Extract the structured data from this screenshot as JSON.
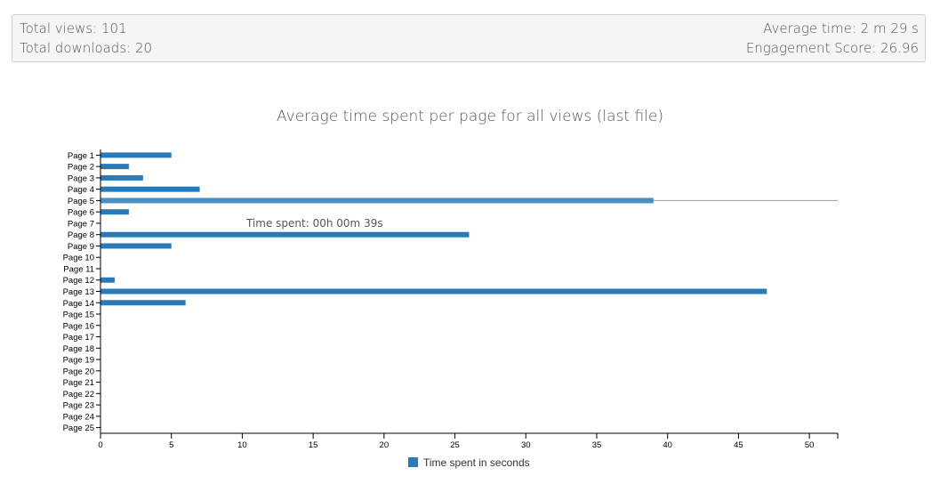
{
  "stats": {
    "total_views": "Total views: 101",
    "total_downloads": "Total downloads: 20",
    "average_time": "Average time: 2 m 29 s",
    "engagement_score": "Engagement Score: 26.96"
  },
  "chart_data": {
    "type": "bar",
    "orientation": "horizontal",
    "title": "Average time spent per page for all views (last file)",
    "categories": [
      "Page 1",
      "Page 2",
      "Page 3",
      "Page 4",
      "Page 5",
      "Page 6",
      "Page 7",
      "Page 8",
      "Page 9",
      "Page 10",
      "Page 11",
      "Page 12",
      "Page 13",
      "Page 14",
      "Page 15",
      "Page 16",
      "Page 17",
      "Page 18",
      "Page 19",
      "Page 20",
      "Page 21",
      "Page 22",
      "Page 23",
      "Page 24",
      "Page 25"
    ],
    "series": [
      {
        "name": "Time spent in seconds",
        "values": [
          5,
          2,
          3,
          7,
          39,
          2,
          0,
          26,
          5,
          0,
          0,
          1,
          47,
          6,
          0,
          0,
          0,
          0,
          0,
          0,
          0,
          0,
          0,
          0,
          0
        ]
      }
    ],
    "xlim": [
      0,
      52
    ],
    "xticks": [
      0,
      5,
      10,
      15,
      20,
      25,
      30,
      35,
      40,
      45,
      50
    ],
    "grid": false,
    "legend_position": "bottom",
    "highlighted_category": "Page 5",
    "tooltip": "Time spent: 00h 00m 39s",
    "colors": {
      "bar": "#2a7ab8",
      "bar_highlight": "#4a8ec2",
      "axis": "#000000",
      "hover_line": "#999999"
    }
  }
}
